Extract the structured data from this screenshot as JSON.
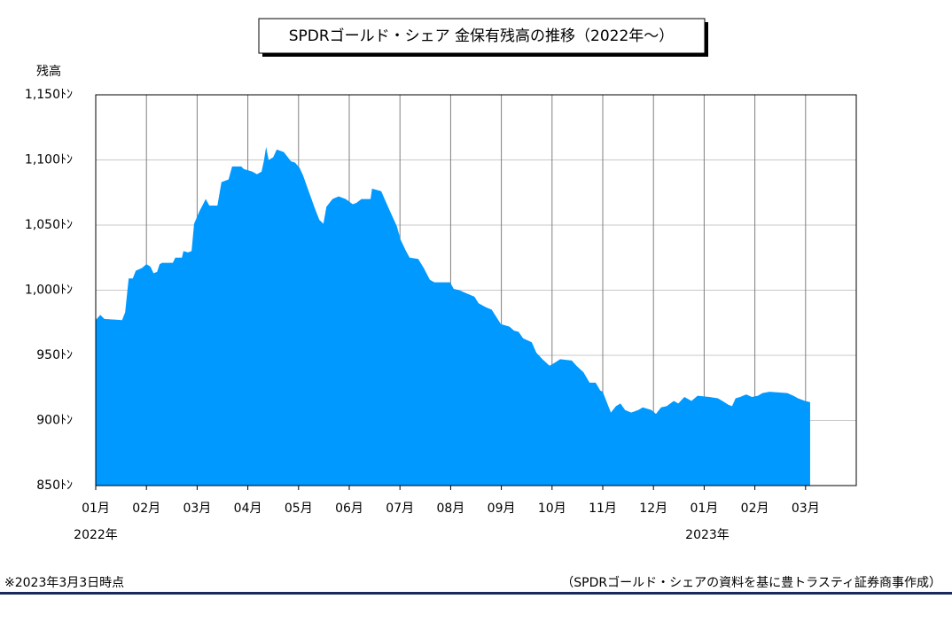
{
  "chart_data": {
    "type": "area",
    "title": "SPDRゴールド・シェア 金保有残高の推移（2022年～）",
    "y_label": "残高",
    "year_labels": [
      "2022年",
      "2023年"
    ],
    "footnote": "※2023年3月3日時点",
    "source": "（SPDRゴールド・シェアの資料を基に豊トラスティ証券商事作成）",
    "color": "#0099ff",
    "grid": true,
    "xlim": [
      0,
      15
    ],
    "xticks": [
      {
        "value": 0,
        "label": "01月"
      },
      {
        "value": 1,
        "label": "02月"
      },
      {
        "value": 2,
        "label": "03月"
      },
      {
        "value": 3,
        "label": "04月"
      },
      {
        "value": 4,
        "label": "05月"
      },
      {
        "value": 5,
        "label": "06月"
      },
      {
        "value": 6,
        "label": "07月"
      },
      {
        "value": 7,
        "label": "08月"
      },
      {
        "value": 8,
        "label": "09月"
      },
      {
        "value": 9,
        "label": "10月"
      },
      {
        "value": 10,
        "label": "11月"
      },
      {
        "value": 11,
        "label": "12月"
      },
      {
        "value": 12,
        "label": "01月"
      },
      {
        "value": 13,
        "label": "02月"
      },
      {
        "value": 14,
        "label": "03月"
      }
    ],
    "ylim": [
      850,
      1150
    ],
    "yticks": [
      {
        "value": 850,
        "label": "850ﾄﾝ"
      },
      {
        "value": 900,
        "label": "900ﾄﾝ"
      },
      {
        "value": 950,
        "label": "950ﾄﾝ"
      },
      {
        "value": 1000,
        "label": "1,000ﾄﾝ"
      },
      {
        "value": 1050,
        "label": "1,050ﾄﾝ"
      },
      {
        "value": 1100,
        "label": "1,100ﾄﾝ"
      },
      {
        "value": 1150,
        "label": "1,150ﾄﾝ"
      }
    ],
    "x": [
      0,
      0.09,
      0.17,
      0.52,
      0.58,
      0.65,
      0.73,
      0.79,
      0.91,
      1.0,
      1.08,
      1.14,
      1.21,
      1.26,
      1.31,
      1.52,
      1.57,
      1.7,
      1.73,
      1.82,
      1.89,
      1.94,
      2.05,
      2.17,
      2.24,
      2.4,
      2.48,
      2.62,
      2.69,
      2.87,
      2.92,
      3.09,
      3.18,
      3.27,
      3.32,
      3.36,
      3.41,
      3.5,
      3.57,
      3.71,
      3.85,
      3.93,
      4.02,
      4.09,
      4.2,
      4.32,
      4.41,
      4.49,
      4.55,
      4.67,
      4.79,
      4.93,
      5.07,
      5.14,
      5.24,
      5.42,
      5.45,
      5.63,
      5.72,
      5.8,
      5.94,
      6.01,
      6.12,
      6.19,
      6.36,
      6.47,
      6.59,
      6.68,
      6.85,
      6.99,
      7.06,
      7.17,
      7.29,
      7.47,
      7.55,
      7.69,
      7.81,
      7.99,
      8.16,
      8.25,
      8.34,
      8.43,
      8.6,
      8.69,
      8.81,
      8.95,
      9.04,
      9.16,
      9.39,
      9.48,
      9.62,
      9.74,
      9.86,
      9.95,
      10.0,
      10.09,
      10.16,
      10.26,
      10.35,
      10.44,
      10.56,
      10.7,
      10.79,
      10.96,
      11.05,
      11.15,
      11.26,
      11.4,
      11.49,
      11.61,
      11.75,
      11.87,
      12.1,
      12.27,
      12.36,
      12.48,
      12.55,
      12.62,
      12.71,
      12.83,
      12.94,
      13.06,
      13.15,
      13.29,
      13.64,
      13.76,
      13.85,
      13.99,
      14.09
    ],
    "values": [
      977,
      981,
      978,
      977,
      983,
      1009,
      1009,
      1015,
      1017,
      1020,
      1018,
      1013,
      1014,
      1020,
      1021,
      1021,
      1025,
      1025,
      1030,
      1029,
      1030,
      1051,
      1061,
      1070,
      1065,
      1065,
      1083,
      1085,
      1095,
      1095,
      1093,
      1091,
      1089,
      1091,
      1100,
      1110,
      1100,
      1102,
      1108,
      1106,
      1099,
      1098,
      1094,
      1088,
      1076,
      1063,
      1054,
      1051,
      1064,
      1070,
      1072,
      1070,
      1066,
      1067,
      1070,
      1070,
      1078,
      1076,
      1068,
      1061,
      1049,
      1039,
      1030,
      1025,
      1024,
      1017,
      1008,
      1006,
      1006,
      1006,
      1001,
      1000,
      998,
      995,
      990,
      987,
      985,
      974,
      972,
      969,
      968,
      963,
      960,
      952,
      947,
      942,
      944,
      947,
      946,
      942,
      937,
      929,
      929,
      923,
      922,
      913,
      906,
      911,
      913,
      908,
      906,
      908,
      910,
      908,
      905,
      910,
      911,
      915,
      913,
      918,
      915,
      919,
      918,
      917,
      915,
      912,
      911,
      917,
      918,
      920,
      918,
      919,
      921,
      922,
      921,
      919,
      917,
      915,
      914
    ]
  }
}
